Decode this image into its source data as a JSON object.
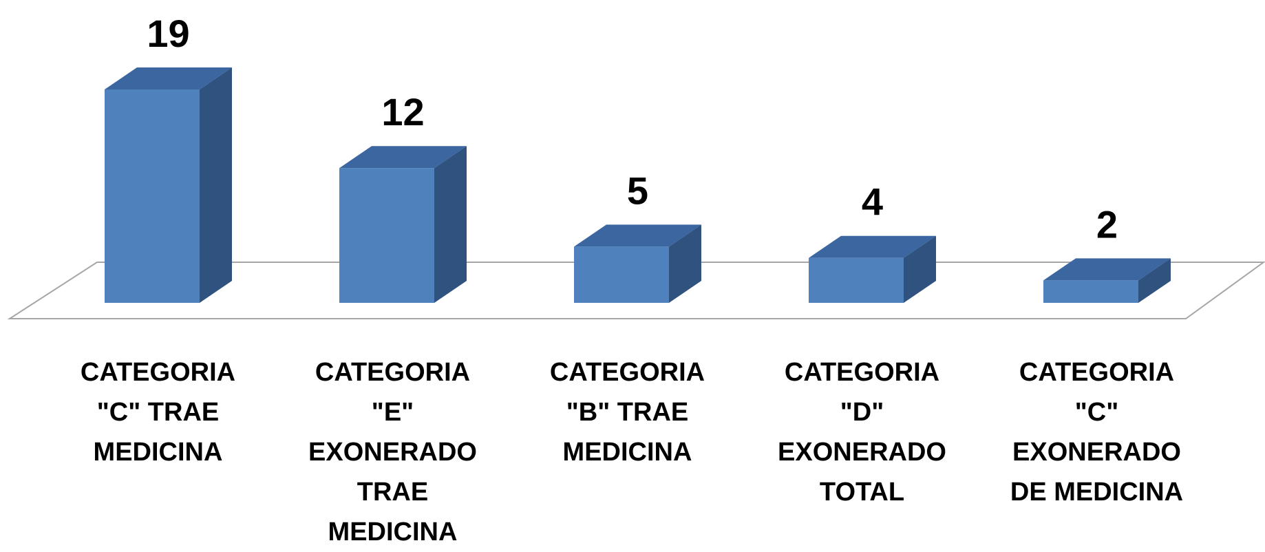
{
  "chart_data": {
    "type": "bar3d",
    "categories": [
      "CATEGORIA \"C\" TRAE MEDICINA",
      "CATEGORIA \"E\" EXONERADO TRAE MEDICINA",
      "CATEGORIA \"B\" TRAE MEDICINA",
      "CATEGORIA \"D\" EXONERADO TOTAL",
      "CATEGORIA \"C\" EXONERADO DE MEDICINA"
    ],
    "values": [
      19,
      12,
      5,
      4,
      2
    ],
    "color": "#4f81bd"
  }
}
